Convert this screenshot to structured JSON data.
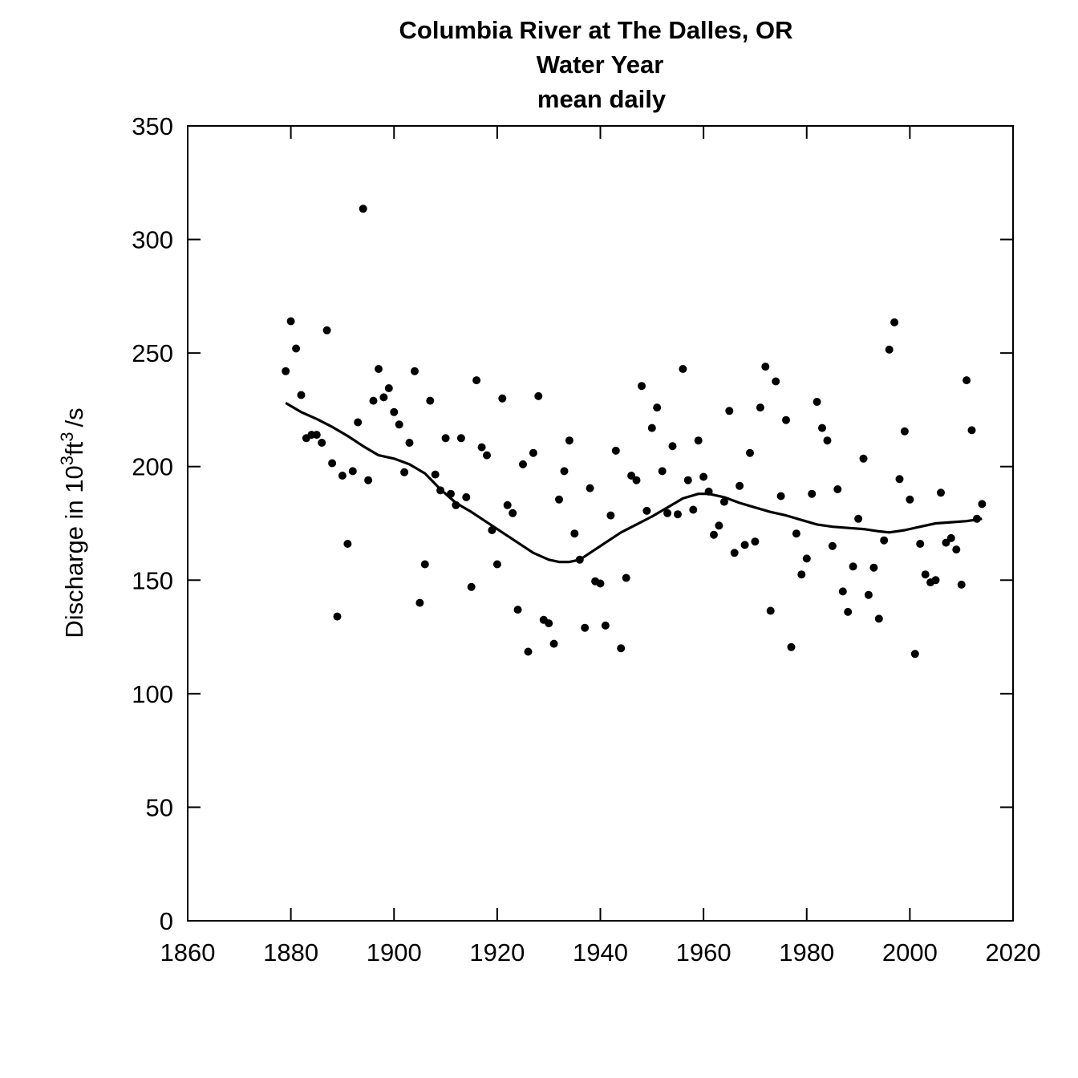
{
  "chart_data": {
    "type": "scatter",
    "title_lines": [
      "Columbia River at The Dalles, OR",
      "Water Year",
      "mean daily"
    ],
    "xlabel": "",
    "ylabel": {
      "prefix": "Discharge in 10",
      "exp1": "3",
      "mid": "ft",
      "exp2": "3",
      "suffix": "/s"
    },
    "xlim": [
      1860,
      2020
    ],
    "ylim": [
      0,
      350
    ],
    "xticks": [
      1860,
      1880,
      1900,
      1920,
      1940,
      1960,
      1980,
      2000,
      2020
    ],
    "yticks": [
      0,
      50,
      100,
      150,
      200,
      250,
      300,
      350
    ],
    "grid": false,
    "legend": "none",
    "series": [
      {
        "kind": "points",
        "x": [
          1879,
          1880,
          1881,
          1882,
          1883,
          1884,
          1885,
          1886,
          1887,
          1888,
          1889,
          1890,
          1891,
          1892,
          1893,
          1894,
          1895,
          1896,
          1897,
          1898,
          1899,
          1900,
          1901,
          1902,
          1903,
          1904,
          1905,
          1906,
          1907,
          1908,
          1909,
          1910,
          1911,
          1912,
          1913,
          1914,
          1915,
          1916,
          1917,
          1918,
          1919,
          1920,
          1921,
          1922,
          1923,
          1924,
          1925,
          1926,
          1927,
          1928,
          1929,
          1930,
          1931,
          1932,
          1933,
          1934,
          1935,
          1936,
          1937,
          1938,
          1939,
          1940,
          1941,
          1942,
          1943,
          1944,
          1945,
          1946,
          1947,
          1948,
          1949,
          1950,
          1951,
          1952,
          1953,
          1954,
          1955,
          1956,
          1957,
          1958,
          1959,
          1960,
          1961,
          1962,
          1963,
          1964,
          1965,
          1966,
          1967,
          1968,
          1969,
          1970,
          1971,
          1972,
          1973,
          1974,
          1975,
          1976,
          1977,
          1978,
          1979,
          1980,
          1981,
          1982,
          1983,
          1984,
          1985,
          1986,
          1987,
          1988,
          1989,
          1990,
          1991,
          1992,
          1993,
          1994,
          1995,
          1996,
          1997,
          1998,
          1999,
          2000,
          2001,
          2002,
          2003,
          2004,
          2005,
          2006,
          2007,
          2008,
          2009,
          2010,
          2011,
          2012,
          2013,
          2014
        ],
        "y": [
          242,
          264,
          252,
          231.5,
          212.5,
          214,
          214,
          210.5,
          260,
          201.5,
          134,
          196,
          166,
          198,
          219.5,
          313.5,
          194,
          229,
          243,
          230.5,
          234.5,
          224,
          218.5,
          197.5,
          210.5,
          242,
          140,
          157,
          229,
          196.5,
          189.5,
          212.5,
          188,
          183,
          212.5,
          186.5,
          147,
          238,
          208.5,
          205,
          172,
          157,
          230,
          183,
          179.5,
          137,
          201,
          118.5,
          206,
          231,
          132.5,
          131,
          122,
          185.5,
          198,
          211.5,
          170.5,
          159,
          129,
          190.5,
          149.5,
          148.5,
          130,
          178.5,
          207,
          120,
          151,
          196,
          194,
          235.5,
          180.5,
          217,
          226,
          198,
          179.5,
          209,
          179,
          243,
          194,
          181,
          211.5,
          195.5,
          189,
          170,
          174,
          184.5,
          224.5,
          162,
          191.5,
          165.5,
          206,
          167,
          226,
          244,
          136.5,
          237.5,
          187,
          220.5,
          120.5,
          170.5,
          152.5,
          159.5,
          188,
          228.5,
          217,
          211.5,
          165,
          190,
          145,
          136,
          156,
          177,
          203.5,
          143.5,
          155.5,
          133,
          167.5,
          251.5,
          263.5,
          194.5,
          215.5,
          185.5,
          117.5,
          166,
          152.5,
          149,
          150,
          188.5,
          166.5,
          168.5,
          163.5,
          148,
          238,
          216,
          177,
          183.5
        ]
      },
      {
        "kind": "smooth",
        "x": [
          1879,
          1882,
          1885,
          1888,
          1891,
          1894,
          1897,
          1900,
          1903,
          1906,
          1909,
          1912,
          1915,
          1918,
          1921,
          1924,
          1927,
          1930,
          1932,
          1934,
          1936,
          1938,
          1941,
          1944,
          1947,
          1950,
          1953,
          1956,
          1959,
          1961,
          1964,
          1967,
          1970,
          1973,
          1976,
          1979,
          1982,
          1985,
          1988,
          1991,
          1994,
          1996,
          1999,
          2002,
          2005,
          2008,
          2011,
          2014
        ],
        "y": [
          228,
          224,
          221,
          217.5,
          213.5,
          209,
          205,
          203.5,
          201,
          197,
          190,
          184,
          180,
          175.5,
          171,
          166.5,
          162,
          159,
          158,
          158,
          159,
          162,
          166.5,
          171,
          174.5,
          178,
          182,
          186,
          188,
          188,
          186.5,
          184,
          182,
          180,
          178.5,
          176.5,
          174.5,
          173.5,
          173,
          172.5,
          171.5,
          171,
          172,
          173.5,
          175,
          175.5,
          176,
          177
        ]
      }
    ]
  }
}
